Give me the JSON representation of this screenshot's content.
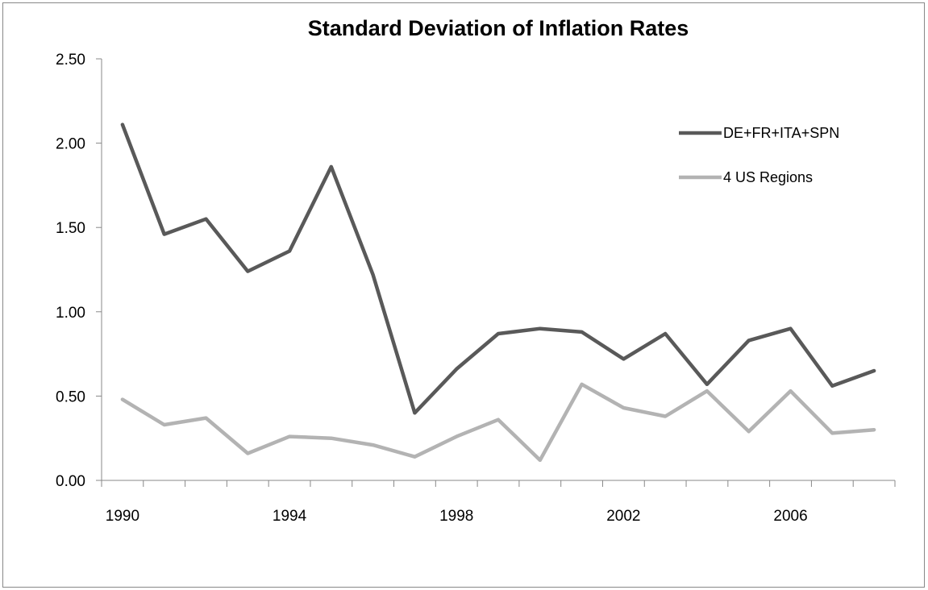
{
  "chart_data": {
    "type": "line",
    "title": "Standard Deviation of Inflation Rates",
    "xlabel": "",
    "ylabel": "",
    "x": [
      1990,
      1991,
      1992,
      1993,
      1994,
      1995,
      1996,
      1997,
      1998,
      1999,
      2000,
      2001,
      2002,
      2003,
      2004,
      2005,
      2006,
      2007,
      2008
    ],
    "x_tick_labels": [
      "1990",
      "1994",
      "1998",
      "2002",
      "2006"
    ],
    "y_tick_labels": [
      "0.00",
      "0.50",
      "1.00",
      "1.50",
      "2.00",
      "2.50"
    ],
    "ylim": [
      0,
      2.5
    ],
    "grid": false,
    "legend_position": "top-right",
    "series": [
      {
        "name": "DE+FR+ITA+SPN",
        "color": "#595959",
        "values": [
          2.11,
          1.46,
          1.55,
          1.24,
          1.36,
          1.86,
          1.22,
          0.4,
          0.66,
          0.87,
          0.9,
          0.88,
          0.72,
          0.87,
          0.57,
          0.83,
          0.9,
          0.56,
          0.65
        ]
      },
      {
        "name": "4 US Regions",
        "color": "#b3b3b3",
        "values": [
          0.48,
          0.33,
          0.37,
          0.16,
          0.26,
          0.25,
          0.21,
          0.14,
          0.26,
          0.36,
          0.12,
          0.57,
          0.43,
          0.38,
          0.53,
          0.29,
          0.53,
          0.28,
          0.3
        ]
      }
    ]
  }
}
